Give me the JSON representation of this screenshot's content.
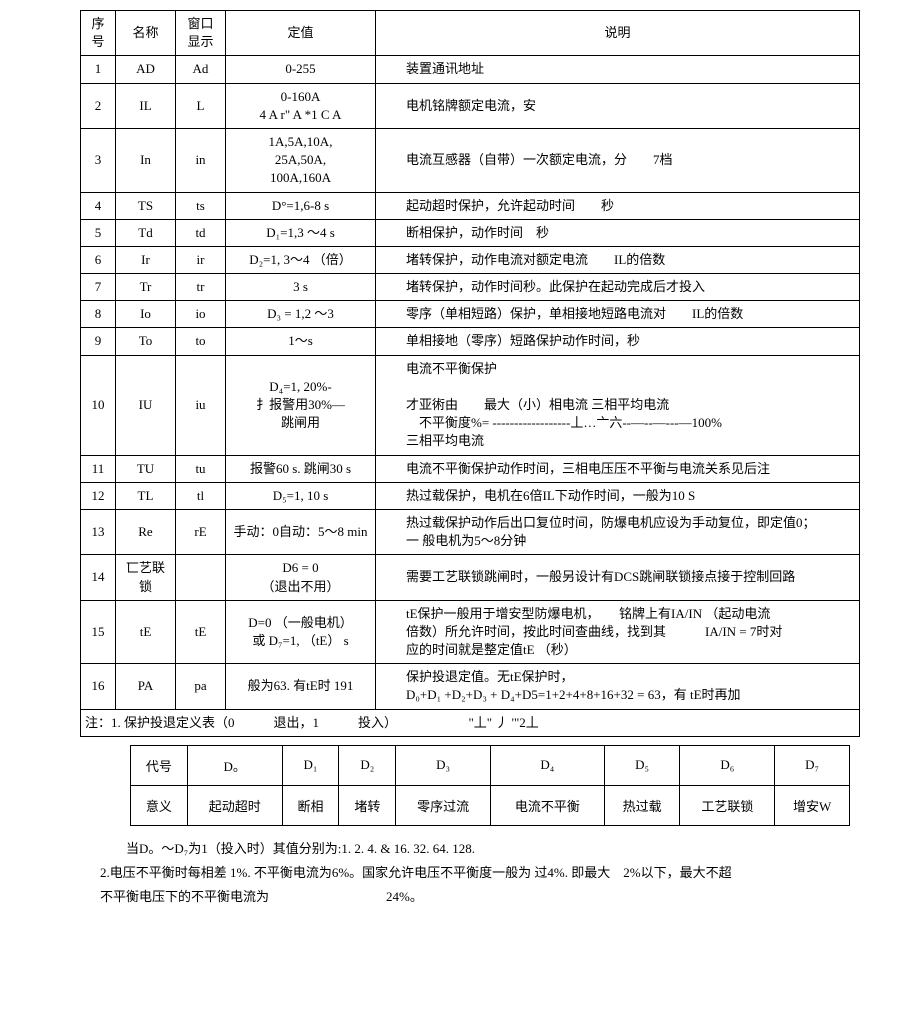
{
  "main": {
    "headers": {
      "seq": "序号",
      "name": "名称",
      "disp": "窗口显示",
      "val": "定值",
      "desc": "说明"
    },
    "rows": [
      {
        "seq": "1",
        "name": "AD",
        "disp": "Ad",
        "val": "0-255",
        "desc": "装置通讯地址"
      },
      {
        "seq": "2",
        "name": "IL",
        "disp": "L",
        "val": "0-160A\n4 A r\" A *1 C A",
        "desc": "电机铭牌额定电流，安"
      },
      {
        "seq": "3",
        "name": "In",
        "disp": "in",
        "val": "1A,5A,10A,\n25A,50A,\n100A,160A",
        "desc": "电流互感器（自带）一次额定电流，分　　7档"
      },
      {
        "seq": "4",
        "name": "TS",
        "disp": "ts",
        "val": "D°=1,6-8 s",
        "desc": "起动超时保护，允许起动时间　　秒"
      },
      {
        "seq": "5",
        "name": "Td",
        "disp": "td",
        "val": "D₁=1,3 〜4 s",
        "desc": "断相保护，动作时间　秒"
      },
      {
        "seq": "6",
        "name": "Ir",
        "disp": "ir",
        "val": "D₂=1, 3〜4 （倍）",
        "desc": "堵转保护，动作电流对额定电流　　IL的倍数"
      },
      {
        "seq": "7",
        "name": "Tr",
        "disp": "tr",
        "val": "3 s",
        "desc": "堵转保护，动作时间秒。此保护在起动完成后才投入"
      },
      {
        "seq": "8",
        "name": "Io",
        "disp": "io",
        "val": "D₃ = 1,2 〜3",
        "desc": "零序（单相短路）保护，单相接地短路电流对　　IL的倍数"
      },
      {
        "seq": "9",
        "name": "To",
        "disp": "to",
        "val": "1〜s",
        "desc": "单相接地（零序）短路保护动作时间，秒"
      },
      {
        "seq": "10",
        "name": "IU",
        "disp": "iu",
        "val": "D₄=1, 20%-\n扌报警用30%—\n跳闸用",
        "desc": "电流不平衡保护\n\n才亚術由　　最大（小）相电流 三相平均电流\n　不平衡度%= ------------------丄…亠六--—--—---—100%\n三相平均电流"
      },
      {
        "seq": "11",
        "name": "TU",
        "disp": "tu",
        "val": "报警60 s. 跳闸30 s",
        "desc": "电流不平衡保护动作时间，三相电压压不平衡与电流关系见后注"
      },
      {
        "seq": "12",
        "name": "TL",
        "disp": "tl",
        "val": "D₅=1, 10 s",
        "desc": "热过载保护，电机在6倍IL下动作时间，一般为10 S"
      },
      {
        "seq": "13",
        "name": "Re",
        "disp": "rE",
        "val": "手动：0自动：5〜8 min",
        "desc": "热过载保护动作后出口复位时间，防爆电机应设为手动复位，即定值0；\n一 般电机为5〜8分钟"
      },
      {
        "seq": "14",
        "name": "匸艺联锁",
        "disp": "",
        "val": "D6 = 0\n（退出不用）",
        "desc": "需要工艺联锁跳闸时，一般另设计有DCS跳闸联锁接点接于控制回路"
      },
      {
        "seq": "15",
        "name": "tE",
        "disp": "tE",
        "val": "D=0 （一般电机）\n或 D₇=1, （tE） s",
        "desc": "tE保护一般用于增安型防爆电机，　　铭牌上有IA/IN （起动电流\n倍数）所允许时间，按此时间查曲线，找到其　　　IA/IN = 7时对\n应的时间就是整定值tE （秒）"
      },
      {
        "seq": "16",
        "name": "PA",
        "disp": "pa",
        "val": "般为63. 有tE时 191",
        "desc": "保护投退定值。无tE保护时，\nD₀+D₁ +D₂+D₃ + D₄+D5=1+2+4+8+16+32 = 63，有 tE时再加"
      }
    ],
    "footnote": "注：1. 保护投退定义表（0　　　退出，1　　　投入）　　　　　　\"丄\" 丿 '\"2丄"
  },
  "defTable": {
    "row1": [
      "代号",
      "D。",
      "D₁",
      "D₂",
      "D₃",
      "D₄",
      "D₅",
      "D₆",
      "D₇"
    ],
    "row2": [
      "意义",
      "起动超时",
      "断相",
      "堵转",
      "零序过流",
      "电流不平衡",
      "热过载",
      "工艺联锁",
      "增安W"
    ]
  },
  "notes": {
    "n1": "当D。〜D₇为1（投入时）其值分别为:1. 2.  4. & 16.  32.  64.  128.",
    "n2": "2.电压不平衡时每相差 1%. 不平衡电流为6%。国家允许电压不平衡度一般为 过4%. 即最大　2%以下，最大不超",
    "n3": "不平衡电压下的不平衡电流为　　　　　　　　　24%。"
  }
}
